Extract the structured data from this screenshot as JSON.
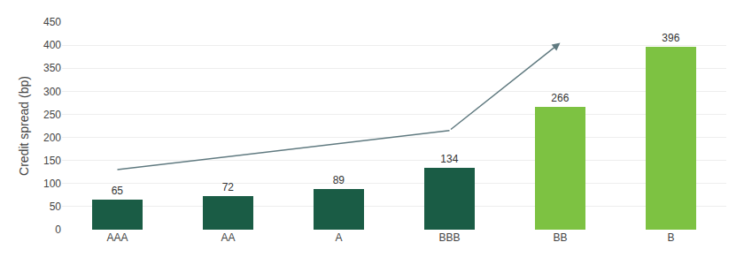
{
  "chart_data": {
    "type": "bar",
    "categories": [
      "AAA",
      "AA",
      "A",
      "BBB",
      "BB",
      "B"
    ],
    "ylabel": "Credit spread (bp)",
    "ylim": [
      0,
      450
    ],
    "yticks": [
      0,
      50,
      100,
      150,
      200,
      250,
      300,
      350,
      400,
      450
    ],
    "grid": true,
    "series": [
      {
        "type": "bar",
        "colors": [
          "#1a5c45",
          "#1a5c45",
          "#1a5c45",
          "#1a5c45",
          "#7dc242",
          "#7dc242"
        ],
        "values": [
          65,
          72,
          89,
          134,
          266,
          396
        ],
        "data_labels": true
      },
      {
        "type": "line",
        "color": "#607a80",
        "x": [
          "AAA",
          "BBB",
          "BB"
        ],
        "values": [
          130,
          215,
          405
        ],
        "marker": "arrow"
      }
    ]
  }
}
